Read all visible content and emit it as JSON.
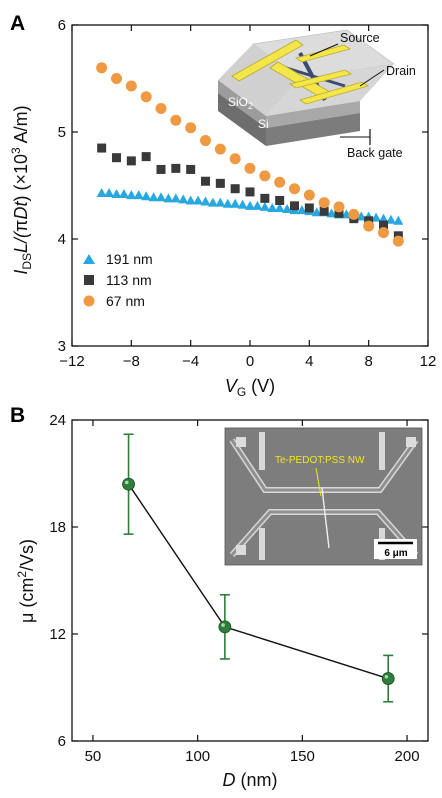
{
  "panels": {
    "a": {
      "letter": "A"
    },
    "b": {
      "letter": "B"
    }
  },
  "chart_data": [
    {
      "type": "scatter",
      "xlabel_main": "V",
      "xlabel_sub": "G",
      "xlabel_unit": " (V)",
      "ylabel_parts": [
        "I",
        "DS",
        "L/(",
        "π",
        "Dt",
        ") (×10",
        "3",
        " A/m)"
      ],
      "xlim": [
        -12,
        12
      ],
      "ylim": [
        3,
        6
      ],
      "x_ticks": [
        "−12",
        "−8",
        "−4",
        "0",
        "4",
        "8",
        "12"
      ],
      "y_ticks": [
        "3",
        "4",
        "5",
        "6"
      ],
      "series": [
        {
          "name": "191 nm",
          "color": "#29a8e0",
          "marker": "triangle",
          "x": [
            -10,
            -9.5,
            -9,
            -8.5,
            -8,
            -7.5,
            -7,
            -6.5,
            -6,
            -5.5,
            -5,
            -4.5,
            -4,
            -3.5,
            -3,
            -2.5,
            -2,
            -1.5,
            -1,
            -0.5,
            0,
            0.5,
            1,
            1.5,
            2,
            2.5,
            3,
            3.5,
            4,
            4.5,
            5,
            5.5,
            6,
            6.5,
            7,
            7.5,
            8,
            8.5,
            9,
            9.5,
            10
          ],
          "y": [
            4.43,
            4.43,
            4.42,
            4.42,
            4.41,
            4.41,
            4.4,
            4.39,
            4.39,
            4.38,
            4.38,
            4.37,
            4.36,
            4.36,
            4.35,
            4.34,
            4.34,
            4.33,
            4.33,
            4.32,
            4.31,
            4.31,
            4.3,
            4.29,
            4.29,
            4.28,
            4.27,
            4.27,
            4.26,
            4.25,
            4.25,
            4.24,
            4.23,
            4.23,
            4.22,
            4.21,
            4.21,
            4.2,
            4.19,
            4.18,
            4.17
          ]
        },
        {
          "name": "113 nm",
          "color": "#3a3a3a",
          "marker": "square",
          "x": [
            -10,
            -9,
            -8,
            -7,
            -6,
            -5,
            -4,
            -3,
            -2,
            -1,
            0,
            1,
            2,
            3,
            4,
            5,
            6,
            7,
            8,
            9,
            10
          ],
          "y": [
            4.85,
            4.76,
            4.73,
            4.77,
            4.65,
            4.66,
            4.65,
            4.54,
            4.52,
            4.47,
            4.44,
            4.38,
            4.36,
            4.31,
            4.29,
            4.26,
            4.24,
            4.19,
            4.17,
            4.13,
            4.03
          ]
        },
        {
          "name": "67 nm",
          "color": "#ef9a42",
          "marker": "circle",
          "x": [
            -10,
            -9,
            -8,
            -7,
            -6,
            -5,
            -4,
            -3,
            -2,
            -1,
            0,
            1,
            2,
            3,
            4,
            5,
            6,
            7,
            8,
            9,
            10
          ],
          "y": [
            5.6,
            5.5,
            5.43,
            5.33,
            5.22,
            5.11,
            5.04,
            4.92,
            4.84,
            4.75,
            4.66,
            4.59,
            4.53,
            4.47,
            4.41,
            4.34,
            4.3,
            4.23,
            4.12,
            4.06,
            3.98
          ]
        }
      ],
      "inset": {
        "labels": {
          "source": "Source",
          "drain": "Drain",
          "sio2_main": "SiO",
          "sio2_sub": "2",
          "si": "Si",
          "back_gate": "Back gate"
        }
      }
    },
    {
      "type": "line",
      "xlabel_main": "D",
      "xlabel_unit": " (nm)",
      "ylabel_parts": [
        "μ (cm",
        "2",
        "/Vs)"
      ],
      "xlim": [
        40,
        210
      ],
      "ylim": [
        6,
        24
      ],
      "x_ticks": [
        "50",
        "100",
        "150",
        "200"
      ],
      "y_ticks": [
        "6",
        "12",
        "18",
        "24"
      ],
      "series": [
        {
          "name": "",
          "color": "#2e7d3a",
          "x": [
            67,
            113,
            191
          ],
          "y": [
            20.4,
            12.4,
            9.5
          ],
          "yerr": [
            2.8,
            1.8,
            1.3
          ]
        }
      ],
      "inset": {
        "label": "Te-PEDOT:PSS NW",
        "scale_bar": "6 μm"
      }
    }
  ]
}
